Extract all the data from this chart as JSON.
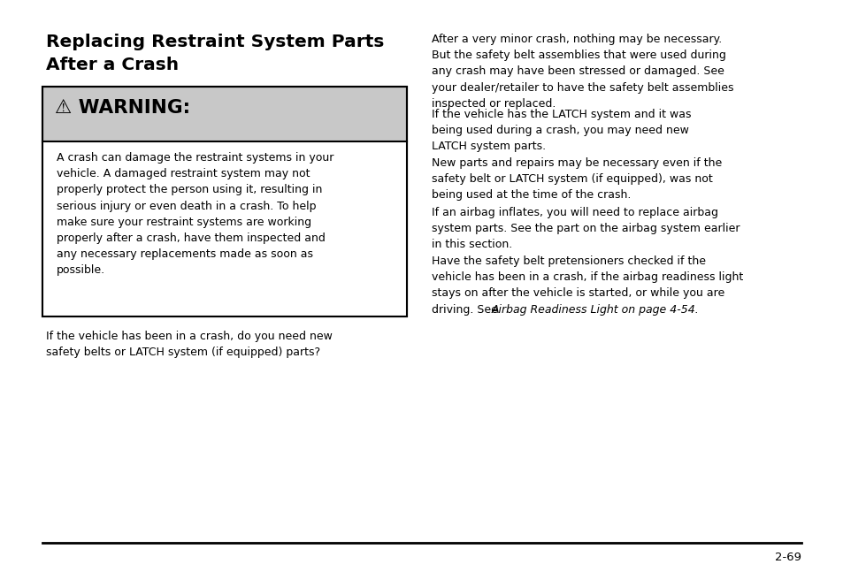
{
  "background_color": "#ffffff",
  "page_number": "2-69",
  "title_line1": "Replacing Restraint System Parts",
  "title_line2": "After a Crash",
  "warning_symbol": "⚠",
  "warning_header_text": " WARNING:",
  "warning_box_bg": "#c8c8c8",
  "warning_body": "A crash can damage the restraint systems in your\nvehicle. A damaged restraint system may not\nproperly protect the person using it, resulting in\nserious injury or even death in a crash. To help\nmake sure your restraint systems are working\nproperly after a crash, have them inspected and\nany necessary replacements made as soon as\npossible.",
  "left_bottom_text": "If the vehicle has been in a crash, do you need new\nsafety belts or LATCH system (if equipped) parts?",
  "right_para1": "After a very minor crash, nothing may be necessary.\nBut the safety belt assemblies that were used during\nany crash may have been stressed or damaged. See\nyour dealer/retailer to have the safety belt assemblies\ninspected or replaced.",
  "right_para2": "If the vehicle has the LATCH system and it was\nbeing used during a crash, you may need new\nLATCH system parts.",
  "right_para3": "New parts and repairs may be necessary even if the\nsafety belt or LATCH system (if equipped), was not\nbeing used at the time of the crash.",
  "right_para4": "If an airbag inflates, you will need to replace airbag\nsystem parts. See the part on the airbag system earlier\nin this section.",
  "right_para5_normal": "Have the safety belt pretensioners checked if the\nvehicle has been in a crash, if the airbag readiness light\nstays on after the vehicle is started, or while you are\ndriving. See ",
  "right_para5_italic": "Airbag Readiness Light on page 4-54",
  "right_para5_end": "."
}
